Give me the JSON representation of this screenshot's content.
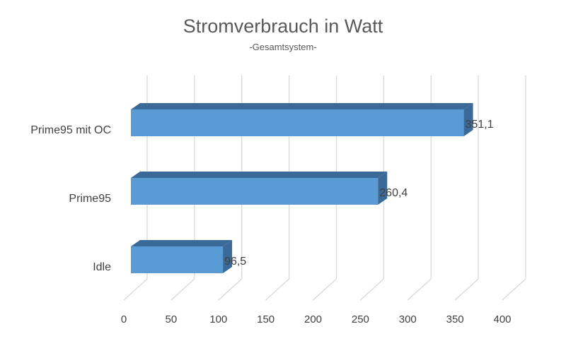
{
  "chart_data": {
    "type": "bar",
    "orientation": "horizontal",
    "style": "3d",
    "title": "Stromverbrauch in Watt",
    "subtitle": "-Gesamtsystem-",
    "categories": [
      "Prime95 mit OC",
      "Prime95",
      "Idle"
    ],
    "values": [
      351.1,
      260.4,
      96.5
    ],
    "value_labels": [
      "351,1",
      "260,4",
      "96,5"
    ],
    "xlim": [
      0,
      400
    ],
    "x_ticks": [
      0,
      50,
      100,
      150,
      200,
      250,
      300,
      350,
      400
    ],
    "grid": true,
    "legend": "none",
    "colors": {
      "bar_front": "#5b9bd5",
      "bar_top": "#3b6a99",
      "bar_side": "#3b6a99",
      "grid": "#d9d9d9",
      "text": "#404040",
      "title": "#595959"
    }
  }
}
